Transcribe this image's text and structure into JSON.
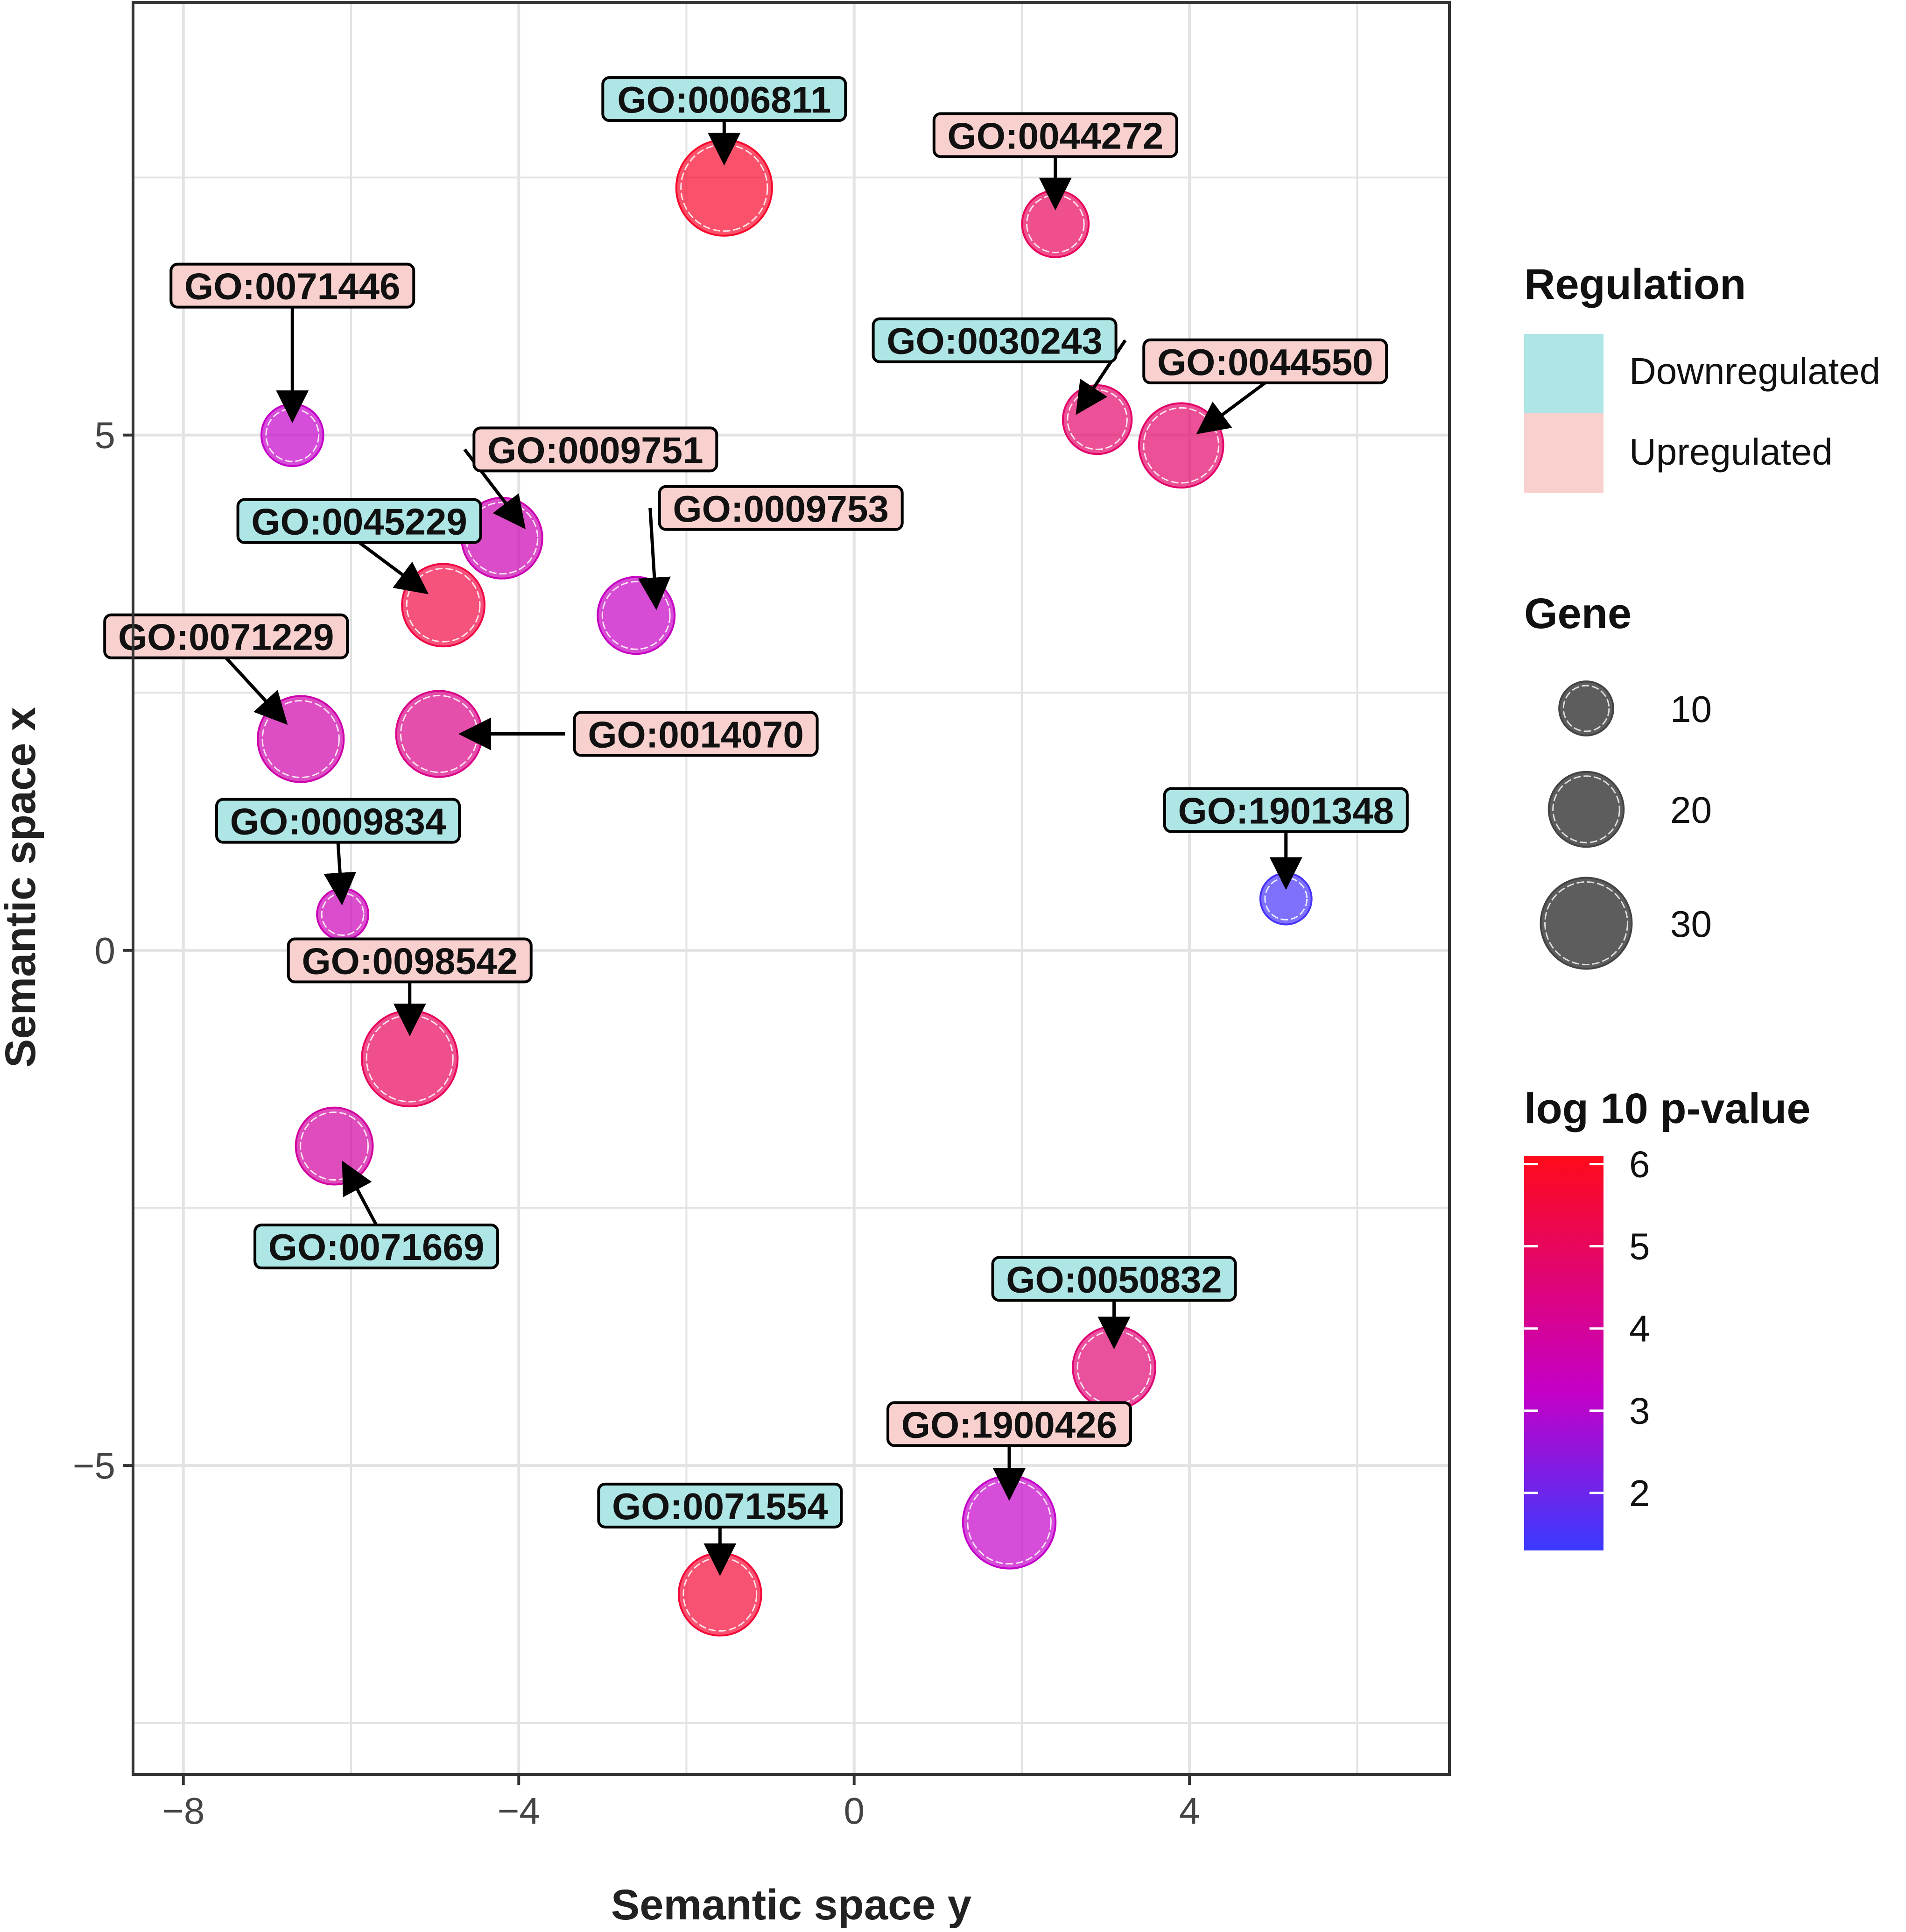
{
  "chart_data": {
    "type": "scatter",
    "title": "",
    "xlabel": "Semantic space y",
    "ylabel": "Semantic space x",
    "xlim": [
      -8.6,
      7.1
    ],
    "ylim": [
      -8.0,
      9.2
    ],
    "xticks": [
      -8,
      -4,
      0,
      4
    ],
    "xtick_labels": [
      "−8",
      "−4",
      "0",
      "4"
    ],
    "yticks": [
      -5,
      0,
      5
    ],
    "ytick_labels": [
      "−5",
      "0",
      "5"
    ],
    "grid": true,
    "points": [
      {
        "id": "GO:0006811",
        "x": -1.55,
        "y": 7.4,
        "gene": 30,
        "logp": 5.8,
        "regulation": "Downregulated"
      },
      {
        "id": "GO:0044272",
        "x": 2.4,
        "y": 7.05,
        "gene": 14,
        "logp": 5.0,
        "regulation": "Upregulated"
      },
      {
        "id": "GO:0071446",
        "x": -6.7,
        "y": 5.0,
        "gene": 12,
        "logp": 3.2,
        "regulation": "Upregulated"
      },
      {
        "id": "GO:0030243",
        "x": 2.9,
        "y": 5.15,
        "gene": 15,
        "logp": 4.8,
        "regulation": "Downregulated"
      },
      {
        "id": "GO:0044550",
        "x": 3.9,
        "y": 4.9,
        "gene": 23,
        "logp": 4.8,
        "regulation": "Upregulated"
      },
      {
        "id": "GO:0009751",
        "x": -4.2,
        "y": 4.0,
        "gene": 21,
        "logp": 3.6,
        "regulation": "Upregulated"
      },
      {
        "id": "GO:0045229",
        "x": -4.9,
        "y": 3.35,
        "gene": 22,
        "logp": 5.4,
        "regulation": "Downregulated"
      },
      {
        "id": "GO:0009753",
        "x": -2.6,
        "y": 3.25,
        "gene": 19,
        "logp": 3.3,
        "regulation": "Upregulated"
      },
      {
        "id": "GO:0071229",
        "x": -6.6,
        "y": 2.05,
        "gene": 24,
        "logp": 3.7,
        "regulation": "Upregulated"
      },
      {
        "id": "GO:0014070",
        "x": -4.95,
        "y": 2.1,
        "gene": 24,
        "logp": 4.3,
        "regulation": "Upregulated"
      },
      {
        "id": "GO:1901348",
        "x": 5.15,
        "y": 0.5,
        "gene": 8,
        "logp": 1.5,
        "regulation": "Downregulated"
      },
      {
        "id": "GO:0009834",
        "x": -6.1,
        "y": 0.35,
        "gene": 8,
        "logp": 3.5,
        "regulation": "Downregulated"
      },
      {
        "id": "GO:0098542",
        "x": -5.3,
        "y": -1.05,
        "gene": 30,
        "logp": 5.0,
        "regulation": "Upregulated"
      },
      {
        "id": "GO:0071669",
        "x": -6.2,
        "y": -1.9,
        "gene": 19,
        "logp": 3.9,
        "regulation": "Downregulated"
      },
      {
        "id": "GO:0050832",
        "x": 3.1,
        "y": -4.05,
        "gene": 22,
        "logp": 4.6,
        "regulation": "Downregulated"
      },
      {
        "id": "GO:1900426",
        "x": 1.85,
        "y": -5.55,
        "gene": 28,
        "logp": 3.2,
        "regulation": "Upregulated"
      },
      {
        "id": "GO:0071554",
        "x": -1.6,
        "y": -6.25,
        "gene": 22,
        "logp": 5.6,
        "regulation": "Downregulated"
      }
    ],
    "legend": {
      "placement": "right",
      "regulation": {
        "title": "Regulation",
        "items": [
          {
            "label": "Downregulated",
            "color": "#aee6e6"
          },
          {
            "label": "Upregulated",
            "color": "#f8d1cf"
          }
        ]
      },
      "gene": {
        "title": "Gene",
        "values": [
          10,
          20,
          30
        ],
        "labels": [
          "10",
          "20",
          "30"
        ]
      },
      "pvalue": {
        "title": "log 10 p-value",
        "range": [
          1.3,
          6.1
        ],
        "ticks": [
          6,
          5,
          4,
          3,
          2
        ],
        "labels": [
          "6",
          "5",
          "4",
          "3",
          "2"
        ],
        "color_low": "#3a3aff",
        "color_mid": "#c400c8",
        "color_high": "#ff0a1a"
      }
    }
  },
  "colors": {
    "panel_border": "#333333",
    "grid": "#e3e3e3",
    "bubble_alpha": "0.7",
    "legend_key_fill": "#5d5d5d"
  }
}
